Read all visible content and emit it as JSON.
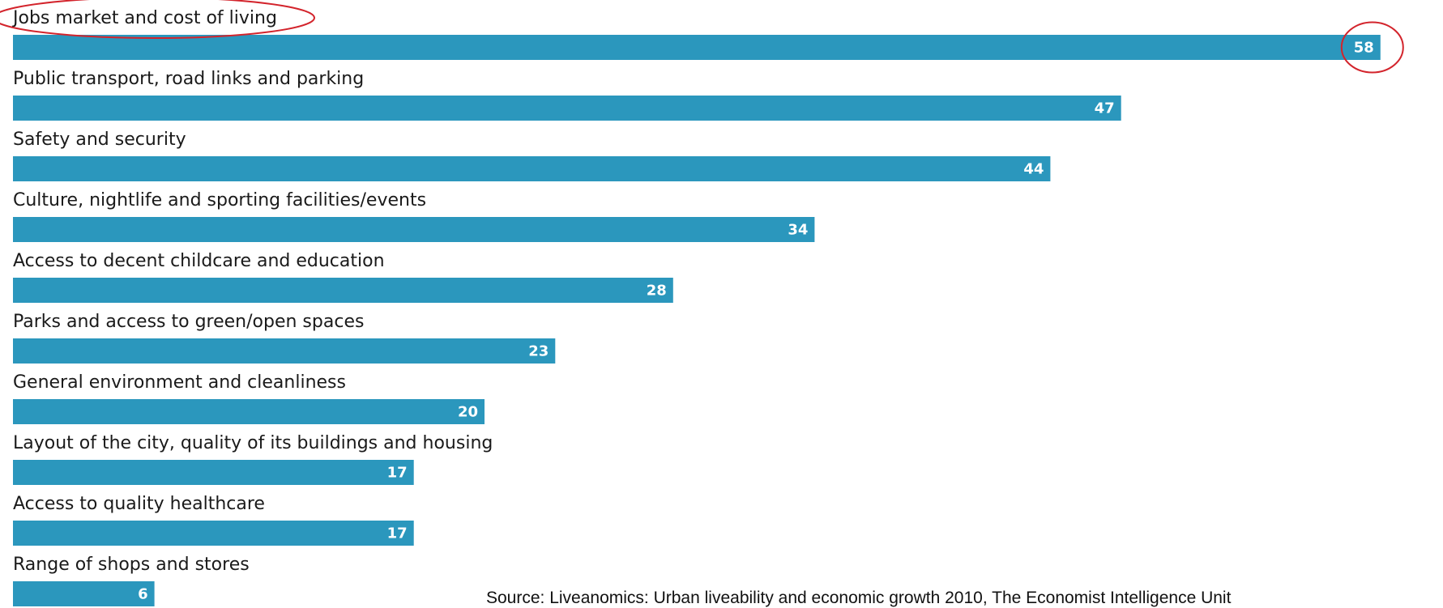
{
  "chart_data": {
    "type": "bar",
    "orientation": "horizontal",
    "categories": [
      "Jobs market and cost of living",
      "Public transport, road links and parking",
      "Safety and security",
      "Culture, nightlife and sporting facilities/events",
      "Access to decent childcare and education",
      "Parks and access to green/open spaces",
      "General environment and cleanliness",
      "Layout of the city, quality of its buildings and housing",
      "Access to quality healthcare",
      "Range of shops and stores"
    ],
    "values": [
      58,
      47,
      44,
      34,
      28,
      23,
      20,
      17,
      17,
      6
    ],
    "xlim": [
      0,
      60
    ],
    "grid": false,
    "bar_color": "#2b97bd",
    "highlight_color": "#d3242c",
    "highlighted_category_index": 0
  },
  "source": "Source: Liveanomics: Urban liveability and economic growth 2010, The Economist Intelligence Unit"
}
